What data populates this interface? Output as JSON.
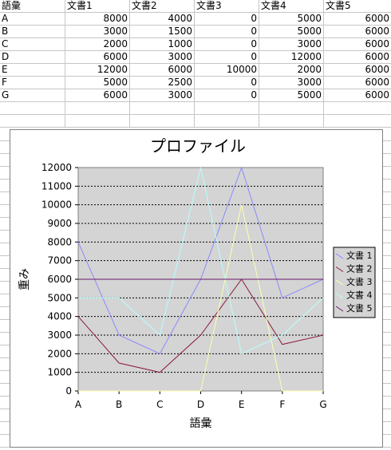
{
  "sheet": {
    "headers": [
      "語彙",
      "文書1",
      "文書2",
      "文書3",
      "文書4",
      "文書5"
    ],
    "rows": [
      [
        "A",
        "8000",
        "4000",
        "0",
        "5000",
        "6000"
      ],
      [
        "B",
        "3000",
        "1500",
        "0",
        "5000",
        "6000"
      ],
      [
        "C",
        "2000",
        "1000",
        "0",
        "3000",
        "6000"
      ],
      [
        "D",
        "6000",
        "3000",
        "0",
        "12000",
        "6000"
      ],
      [
        "E",
        "12000",
        "6000",
        "10000",
        "2000",
        "6000"
      ],
      [
        "F",
        "5000",
        "2500",
        "0",
        "3000",
        "6000"
      ],
      [
        "G",
        "6000",
        "3000",
        "0",
        "5000",
        "6000"
      ]
    ]
  },
  "chart_data": {
    "type": "line",
    "title": "プロファイル",
    "xlabel": "語彙",
    "ylabel": "重み",
    "categories": [
      "A",
      "B",
      "C",
      "D",
      "E",
      "F",
      "G"
    ],
    "ylim": [
      0,
      12000
    ],
    "yticks": [
      "0",
      "1000",
      "2000",
      "3000",
      "4000",
      "5000",
      "6000",
      "7000",
      "8000",
      "9000",
      "10000",
      "11000",
      "12000"
    ],
    "grid": "horizontal dotted",
    "plot_background": "#d4d4d4",
    "legend_position": "right",
    "series": [
      {
        "name": "文書 1",
        "color": "#8a8aff",
        "values": [
          8000,
          3000,
          2000,
          6000,
          12000,
          5000,
          6000
        ]
      },
      {
        "name": "文書 2",
        "color": "#8b1a3a",
        "values": [
          4000,
          1500,
          1000,
          3000,
          6000,
          2500,
          3000
        ]
      },
      {
        "name": "文書 3",
        "color": "#ffffb0",
        "values": [
          0,
          0,
          0,
          0,
          10000,
          0,
          0
        ]
      },
      {
        "name": "文書 4",
        "color": "#b8ffff",
        "values": [
          5000,
          5000,
          3000,
          12000,
          2000,
          3000,
          5000
        ]
      },
      {
        "name": "文書 5",
        "color": "#6a1a6a",
        "values": [
          6000,
          6000,
          6000,
          6000,
          6000,
          6000,
          6000
        ]
      }
    ]
  }
}
